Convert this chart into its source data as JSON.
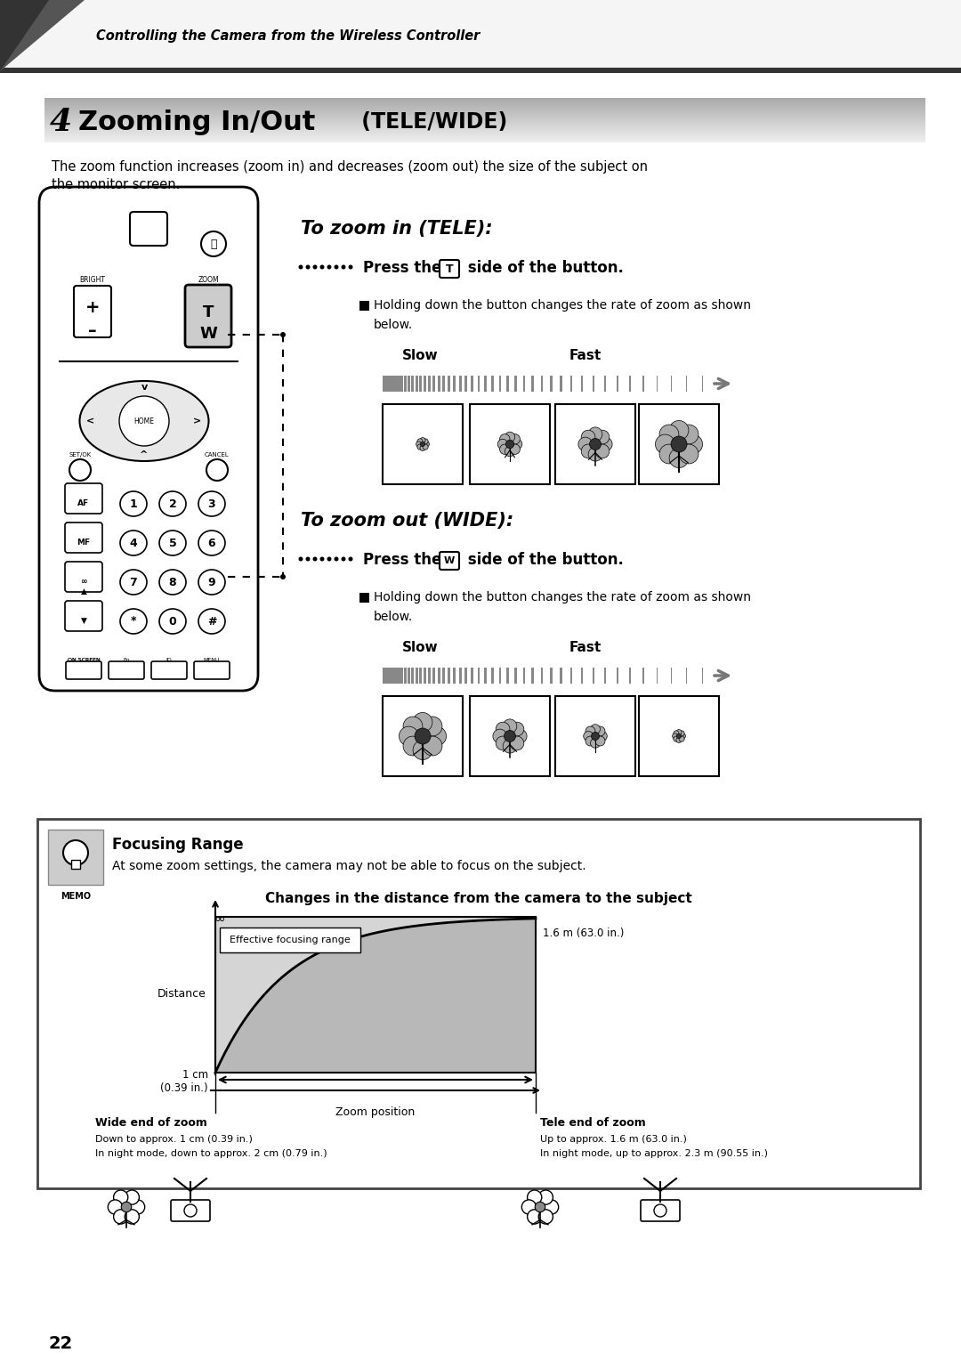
{
  "header_text": "Controlling the Camera from the Wireless Controller",
  "page_number": "4",
  "intro_text1": "The zoom function increases (zoom in) and decreases (zoom out) the size of the subject on",
  "intro_text2": "the monitor screen.",
  "tele_title": "To zoom in (TELE):",
  "tele_press_pre": "Press the ",
  "tele_press_key": "T",
  "tele_press_post": " side of the button.",
  "wide_title": "To zoom out (WIDE):",
  "wide_press_pre": "Press the ",
  "wide_press_key": "W",
  "wide_press_post": " side of the button.",
  "bullet_text1": "Holding down the button changes the rate of zoom as shown",
  "bullet_text2": "below.",
  "slow_label": "Slow",
  "fast_label": "Fast",
  "memo_title": "Focusing Range",
  "memo_text": "At some zoom settings, the camera may not be able to focus on the subject.",
  "graph_title": "Changes in the distance from the camera to the subject",
  "graph_ylabel": "Distance",
  "graph_xlabel": "Zoom position",
  "graph_label_effective": "Effective focusing range",
  "graph_label_1cm": "1 cm\n(0.39 in.)",
  "graph_label_16m": "1.6 m (63.0 in.)",
  "graph_label_inf": "∞",
  "wide_end_label": "Wide end of zoom",
  "wide_end_sub1": "Down to approx. 1 cm (0.39 in.)",
  "wide_end_sub2": "In night mode, down to approx. 2 cm (0.79 in.)",
  "tele_end_label": "Tele end of zoom",
  "tele_end_sub1": "Up to approx. 1.6 m (63.0 in.)",
  "tele_end_sub2": "In night mode, up to approx. 2.3 m (90.55 in.)",
  "page_num_label": "22",
  "memo_label": "MEMO",
  "bg_color": "#ffffff"
}
